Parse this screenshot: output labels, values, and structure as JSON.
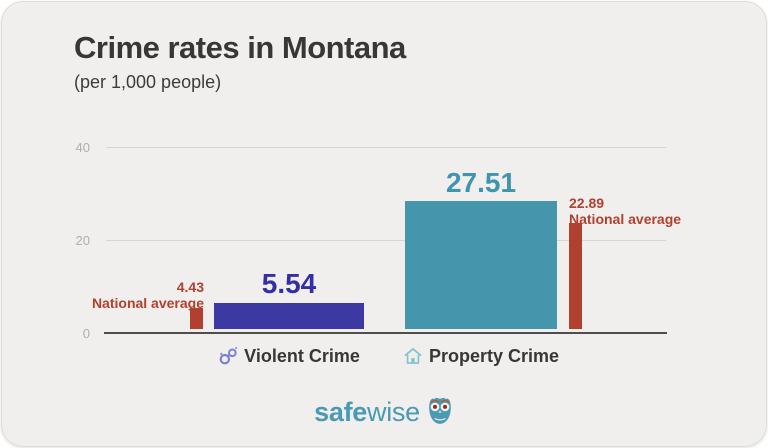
{
  "header": {
    "title": "Crime rates in Montana",
    "subtitle": "(per 1,000 people)"
  },
  "axis": {
    "ticks": [
      "40",
      "20",
      "0"
    ]
  },
  "chart_data": {
    "type": "bar",
    "title": "Crime rates in Montana",
    "subtitle": "(per 1,000 people)",
    "categories": [
      "Violent Crime",
      "Property Crime"
    ],
    "series": [
      {
        "name": "Montana",
        "values": [
          5.54,
          27.51
        ],
        "colors": [
          "#3d39a2",
          "#4596ac"
        ]
      },
      {
        "name": "National average",
        "values": [
          4.43,
          22.89
        ],
        "color": "#b2402e"
      }
    ],
    "ylim": [
      0,
      40
    ],
    "yticks": [
      0,
      20,
      40
    ],
    "grid": true,
    "legend_position": "none",
    "bar_value_labels": [
      "5.54",
      "27.51"
    ],
    "national_average_labels": [
      "4.43",
      "22.89"
    ],
    "national_average_caption": "National average",
    "category_icons": [
      "handcuffs-icon",
      "house-icon"
    ]
  },
  "labels": {
    "violent_value": "5.54",
    "property_value": "27.51",
    "violent_avg_value": "4.43",
    "violent_avg_caption": "National average",
    "property_avg_value": "22.89",
    "property_avg_caption": "National average",
    "violent_category": "Violent Crime",
    "property_category": "Property Crime"
  },
  "footer": {
    "brand_bold": "safe",
    "brand_light": "wise",
    "logo_icon": "owl-icon"
  },
  "colors": {
    "card_background": "#f0efee",
    "title_text": "#3a3633",
    "indigo_bar": "#3d39a2",
    "teal_bar": "#4596ac",
    "red_marker": "#b2402e",
    "tick_text": "#b1afac",
    "gridline": "#d7d5d3",
    "axis_line": "#504e4c",
    "handcuffs_icon": "#7b80d2",
    "house_icon": "#84c2ce",
    "logo_teal": "#4a9ab3"
  }
}
